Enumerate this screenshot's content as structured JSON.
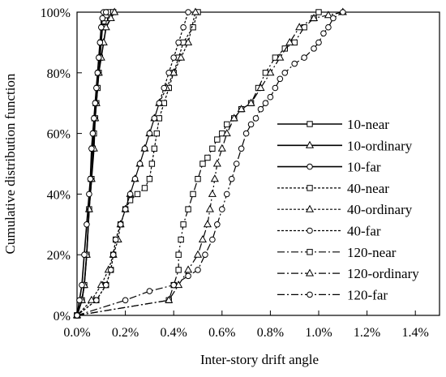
{
  "chart_data": {
    "type": "line",
    "title": "",
    "xlabel": "Inter-story drift angle",
    "ylabel": "Cumulative distribution function",
    "xlim": [
      0,
      1.5
    ],
    "ylim": [
      0,
      100
    ],
    "x_ticks": [
      0,
      0.2,
      0.4,
      0.6,
      0.8,
      1.0,
      1.2,
      1.4
    ],
    "x_tick_labels": [
      "0.0%",
      "0.2%",
      "0.4%",
      "0.6%",
      "0.8%",
      "1.0%",
      "1.2%",
      "1.4%"
    ],
    "y_ticks": [
      0,
      20,
      40,
      60,
      80,
      100
    ],
    "y_tick_labels": [
      "0%",
      "20%",
      "40%",
      "60%",
      "80%",
      "100%"
    ],
    "grid": false,
    "legend_position": "right",
    "series": [
      {
        "name": "10-near",
        "line": "solid",
        "marker": "square",
        "x": [
          0,
          0.02,
          0.03,
          0.04,
          0.05,
          0.06,
          0.065,
          0.07,
          0.075,
          0.08,
          0.085,
          0.09,
          0.095,
          0.1,
          0.105,
          0.11,
          0.115,
          0.12,
          0.13,
          0.15
        ],
        "y": [
          0,
          5,
          10,
          20,
          35,
          45,
          55,
          60,
          65,
          70,
          75,
          80,
          85,
          90,
          95,
          97,
          98,
          99,
          100,
          100
        ]
      },
      {
        "name": "10-ordinary",
        "line": "solid",
        "marker": "triangle",
        "x": [
          0,
          0.02,
          0.03,
          0.04,
          0.05,
          0.06,
          0.07,
          0.075,
          0.08,
          0.09,
          0.1,
          0.11,
          0.12,
          0.14,
          0.155
        ],
        "y": [
          0,
          5,
          10,
          20,
          35,
          45,
          55,
          65,
          70,
          80,
          85,
          90,
          95,
          98,
          100
        ]
      },
      {
        "name": "10-far",
        "line": "solid",
        "marker": "circle",
        "x": [
          0,
          0.01,
          0.02,
          0.03,
          0.04,
          0.05,
          0.055,
          0.06,
          0.065,
          0.07,
          0.075,
          0.08,
          0.085,
          0.09,
          0.095,
          0.1,
          0.105,
          0.11,
          0.12
        ],
        "y": [
          0,
          5,
          10,
          20,
          30,
          40,
          45,
          55,
          60,
          65,
          70,
          75,
          80,
          85,
          90,
          95,
          98,
          100,
          100
        ]
      },
      {
        "name": "40-near",
        "line": "dotted",
        "marker": "square",
        "x": [
          0,
          0.08,
          0.12,
          0.14,
          0.15,
          0.16,
          0.18,
          0.2,
          0.22,
          0.25,
          0.28,
          0.3,
          0.31,
          0.32,
          0.33,
          0.34,
          0.36,
          0.38,
          0.4,
          0.42,
          0.44,
          0.48,
          0.5
        ],
        "y": [
          0,
          5,
          10,
          15,
          20,
          25,
          30,
          35,
          38,
          40,
          42,
          45,
          50,
          55,
          60,
          65,
          70,
          75,
          80,
          85,
          90,
          95,
          100
        ]
      },
      {
        "name": "40-ordinary",
        "line": "dotted",
        "marker": "triangle",
        "x": [
          0,
          0.06,
          0.1,
          0.13,
          0.15,
          0.17,
          0.18,
          0.2,
          0.22,
          0.24,
          0.26,
          0.28,
          0.3,
          0.32,
          0.34,
          0.37,
          0.4,
          0.43,
          0.46,
          0.49
        ],
        "y": [
          0,
          5,
          10,
          15,
          20,
          25,
          30,
          35,
          40,
          45,
          50,
          55,
          60,
          65,
          70,
          75,
          80,
          85,
          90,
          100
        ]
      },
      {
        "name": "40-far",
        "line": "dotted",
        "marker": "circle",
        "x": [
          0,
          0.08,
          0.12,
          0.14,
          0.15,
          0.16,
          0.18,
          0.2,
          0.22,
          0.24,
          0.26,
          0.28,
          0.3,
          0.32,
          0.34,
          0.36,
          0.38,
          0.4,
          0.42,
          0.44,
          0.46
        ],
        "y": [
          0,
          5,
          10,
          15,
          20,
          25,
          30,
          35,
          40,
          45,
          50,
          55,
          60,
          65,
          70,
          75,
          80,
          85,
          90,
          95,
          100
        ]
      },
      {
        "name": "120-near",
        "line": "dashdot",
        "marker": "square",
        "x": [
          0,
          0.38,
          0.4,
          0.42,
          0.42,
          0.43,
          0.44,
          0.46,
          0.48,
          0.5,
          0.52,
          0.54,
          0.56,
          0.58,
          0.6,
          0.62,
          0.65,
          0.68,
          0.72,
          0.75,
          0.78,
          0.82,
          0.86,
          0.9,
          0.94,
          0.98,
          1.0
        ],
        "y": [
          0,
          5,
          10,
          15,
          20,
          25,
          30,
          35,
          40,
          45,
          50,
          52,
          55,
          58,
          60,
          63,
          65,
          68,
          70,
          75,
          80,
          85,
          88,
          90,
          95,
          98,
          100
        ]
      },
      {
        "name": "120-ordinary",
        "line": "dashdot",
        "marker": "triangle",
        "x": [
          0,
          0.38,
          0.42,
          0.46,
          0.5,
          0.52,
          0.54,
          0.55,
          0.56,
          0.57,
          0.58,
          0.6,
          0.62,
          0.65,
          0.68,
          0.72,
          0.76,
          0.8,
          0.84,
          0.88,
          0.92,
          0.98,
          1.04,
          1.1
        ],
        "y": [
          0,
          5,
          10,
          15,
          20,
          25,
          30,
          35,
          40,
          45,
          50,
          55,
          60,
          65,
          68,
          70,
          75,
          80,
          85,
          90,
          95,
          98,
          99,
          100
        ]
      },
      {
        "name": "120-far",
        "line": "dashdot",
        "marker": "circle",
        "x": [
          0,
          0.2,
          0.3,
          0.4,
          0.46,
          0.5,
          0.53,
          0.56,
          0.58,
          0.6,
          0.62,
          0.64,
          0.66,
          0.68,
          0.7,
          0.72,
          0.74,
          0.76,
          0.78,
          0.8,
          0.82,
          0.84,
          0.86,
          0.9,
          0.94,
          0.98,
          1.0,
          1.02,
          1.04,
          1.06,
          1.1
        ],
        "y": [
          0,
          5,
          8,
          10,
          13,
          15,
          20,
          25,
          30,
          35,
          40,
          45,
          50,
          55,
          60,
          63,
          65,
          68,
          70,
          72,
          75,
          78,
          80,
          83,
          85,
          88,
          90,
          93,
          95,
          98,
          100
        ]
      }
    ]
  }
}
